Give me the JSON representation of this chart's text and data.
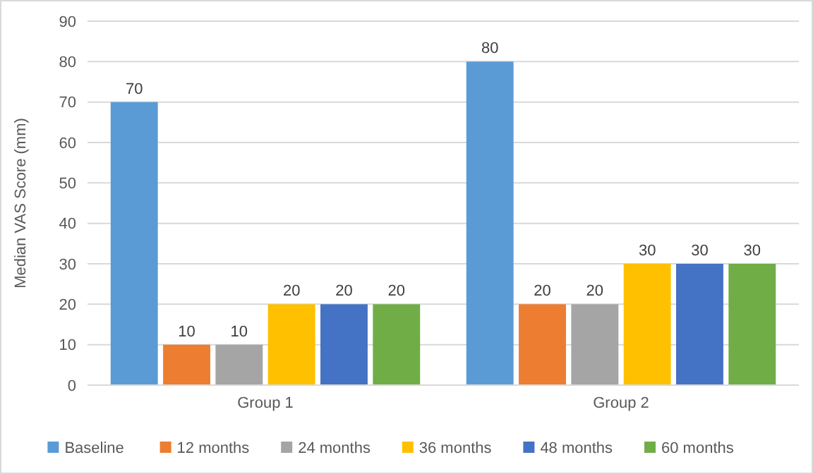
{
  "chart_data": {
    "type": "bar",
    "ylabel": "Median VAS Score (mm)",
    "categories": [
      "Group 1",
      "Group 2"
    ],
    "series": [
      {
        "name": "Baseline",
        "color": "#5b9bd5",
        "values": [
          70,
          80
        ]
      },
      {
        "name": "12 months",
        "color": "#ed7d31",
        "values": [
          10,
          20
        ]
      },
      {
        "name": "24 months",
        "color": "#a5a5a5",
        "values": [
          10,
          20
        ]
      },
      {
        "name": "36 months",
        "color": "#ffc000",
        "values": [
          20,
          30
        ]
      },
      {
        "name": "48 months",
        "color": "#4472c4",
        "values": [
          20,
          30
        ]
      },
      {
        "name": "60 months",
        "color": "#70ad47",
        "values": [
          20,
          30
        ]
      }
    ],
    "ylim": [
      0,
      90
    ],
    "yticks": [
      0,
      10,
      20,
      30,
      40,
      50,
      60,
      70,
      80,
      90
    ],
    "grid": "y",
    "legend": "bottom",
    "data_labels": true
  }
}
